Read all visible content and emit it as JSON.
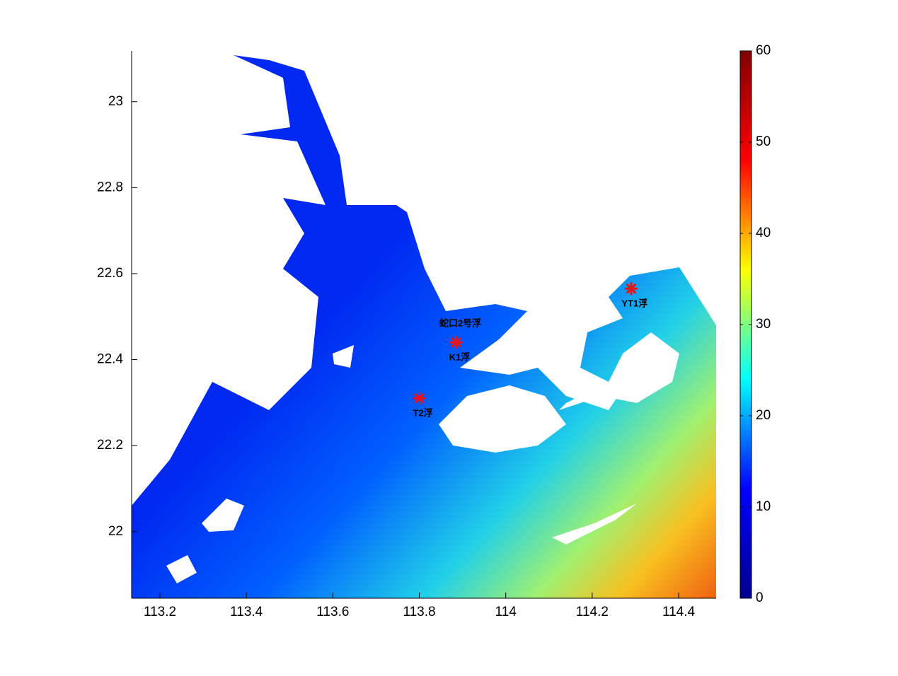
{
  "chart_data": {
    "type": "map",
    "xlim": [
      113.1345,
      114.4867
    ],
    "ylim": [
      21.845,
      23.118
    ],
    "xticks": [
      113.2,
      113.4,
      113.6,
      113.8,
      114,
      114.2,
      114.4
    ],
    "yticks": [
      22,
      22.2,
      22.4,
      22.6,
      22.8,
      23
    ],
    "clim": [
      0,
      60
    ],
    "cticks": [
      0,
      10,
      20,
      30,
      40,
      50,
      60
    ],
    "colormap": [
      "#00008f",
      "#0000ff",
      "#00ffff",
      "#ffff00",
      "#ff0000",
      "#800000"
    ],
    "marker_color": "#e8141c",
    "stations": [
      {
        "name": "YT1浮",
        "x": 114.29,
        "y": 22.565
      },
      {
        "name": "蛇口2号浮",
        "x": 113.885,
        "y": 22.44
      },
      {
        "name": "K1浮",
        "x": 113.885,
        "y": 22.44
      },
      {
        "name": "T2浮",
        "x": 113.8,
        "y": 22.31
      }
    ]
  }
}
